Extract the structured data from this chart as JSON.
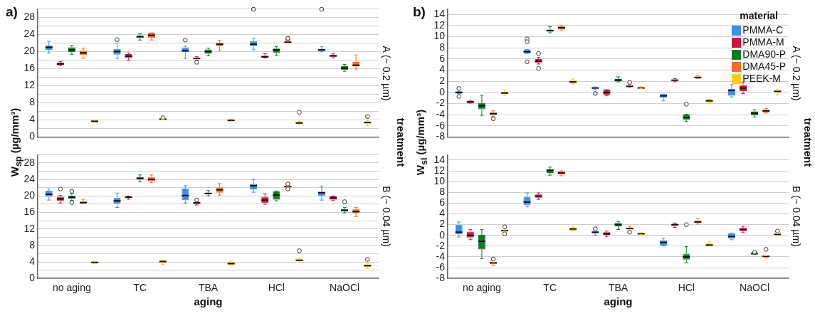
{
  "chart_data": [
    {
      "type": "box",
      "title": "a)",
      "ylabel": "W$_{sp}$  (µg/mm³)",
      "y2label": "A (~ 0.2 µm)",
      "annotations": [
        "treatment"
      ],
      "legend": false,
      "tick_labels": "y",
      "grid": "y",
      "categories": [
        null,
        null,
        null,
        null,
        null
      ],
      "ylim": [
        0,
        30
      ],
      "yticks": [
        0,
        {
          "value": 2,
          "label": null
        },
        4,
        {
          "value": 6,
          "label": null
        },
        8,
        {
          "value": 10,
          "label": null
        },
        12,
        {
          "value": 14,
          "label": null
        },
        16,
        {
          "value": 18,
          "label": null
        },
        20,
        {
          "value": 22,
          "label": null
        },
        24,
        {
          "value": 26,
          "label": null
        },
        28,
        {
          "value": 30,
          "label": null
        }
      ],
      "series": [
        {
          "color": "#3a8fe6",
          "boxes": [
            {
              "low": 19.7,
              "q1": 20.4,
              "median": 21,
              "q3": 21.4,
              "high": 22.4
            },
            {
              "low": 18.4,
              "q1": 19.3,
              "median": 20,
              "q3": 20.6,
              "high": 22,
              "outliers": [
                22.8
              ]
            },
            {
              "low": 18.4,
              "q1": 19.9,
              "median": 20.2,
              "q3": 21,
              "high": 21.3,
              "outliers": [
                22.7
              ]
            },
            {
              "low": 20.4,
              "q1": 21.3,
              "median": 21.7,
              "q3": 22.5,
              "high": 23.1,
              "outliers": [
                29.9
              ]
            },
            {
              "low": 20,
              "q1": 20.1,
              "median": 20.4,
              "q3": 20.6,
              "high": 21.2,
              "outliers": [
                29.9
              ]
            }
          ]
        },
        {
          "color": "#d2123c",
          "boxes": [
            {
              "low": 16.7,
              "q1": 16.9,
              "median": 17.1,
              "q3": 17.4,
              "high": 17.7
            },
            {
              "low": 18,
              "q1": 18.5,
              "median": 18.9,
              "q3": 19.4,
              "high": 19.7
            },
            {
              "low": 18,
              "q1": 18.2,
              "median": 18.4,
              "q3": 18.6,
              "high": 18.8,
              "outliers": [
                17.5
              ]
            },
            {
              "low": 18.5,
              "q1": 18.6,
              "median": 18.8,
              "q3": 19,
              "high": 19.5
            },
            {
              "low": 18.5,
              "q1": 18.8,
              "median": 19,
              "q3": 19.2,
              "high": 19.5
            }
          ]
        },
        {
          "color": "#0b7d1e",
          "boxes": [
            {
              "low": 19.3,
              "q1": 19.9,
              "median": 20.4,
              "q3": 21,
              "high": 21.4
            },
            {
              "low": 22.7,
              "q1": 23.2,
              "median": 23.5,
              "q3": 23.7,
              "high": 24.2
            },
            {
              "low": 19,
              "q1": 19.5,
              "median": 20,
              "q3": 20.5,
              "high": 20.8
            },
            {
              "low": 19.1,
              "q1": 19.7,
              "median": 20.4,
              "q3": 20.7,
              "high": 21.2
            },
            {
              "low": 15.4,
              "q1": 15.7,
              "median": 16.1,
              "q3": 16.6,
              "high": 17
            }
          ]
        },
        {
          "color": "#ff6b22",
          "boxes": [
            {
              "low": 18.4,
              "q1": 19.2,
              "median": 19.7,
              "q3": 20.2,
              "high": 20.8
            },
            {
              "low": 22.7,
              "q1": 23.2,
              "median": 23.8,
              "q3": 24.4,
              "high": 24.4
            },
            {
              "low": 20.2,
              "q1": 21.3,
              "median": 21.7,
              "q3": 22.1,
              "high": 22.6
            },
            {
              "low": 22,
              "q1": 22.1,
              "median": 22.2,
              "q3": 22.3,
              "high": 22.5,
              "outliers": [
                22.7,
                23.1
              ]
            },
            {
              "low": 15.9,
              "q1": 16.5,
              "median": 16.8,
              "q3": 17.6,
              "high": 19.2
            }
          ]
        },
        {
          "color": "#ffcc1a",
          "boxes": [
            {
              "low": 3.4,
              "q1": 3.5,
              "median": 3.7,
              "q3": 3.9,
              "high": 4
            },
            {
              "low": 4.1,
              "q1": 4.1,
              "median": 4.2,
              "q3": 4.3,
              "high": 4.3,
              "outliers": [
                4.5
              ]
            },
            {
              "low": 3.7,
              "q1": 3.8,
              "median": 3.9,
              "q3": 4.1,
              "high": 4.2
            },
            {
              "low": 2.9,
              "q1": 3.1,
              "median": 3.3,
              "q3": 3.5,
              "high": 3.7,
              "outliers": [
                5.8
              ]
            },
            {
              "low": 2.7,
              "q1": 3.2,
              "median": 3.4,
              "q3": 3.7,
              "high": 3.9,
              "outliers": [
                4.8
              ]
            }
          ]
        }
      ]
    },
    {
      "type": "box",
      "title": "b)",
      "ylabel": "W$_{sl}$  (µg/mm³)",
      "y2label": "A (~ 0.2 µm)",
      "annotations": [
        "treatment"
      ],
      "legend": "top right",
      "legend_title": "material",
      "tick_labels": "y",
      "grid": "y",
      "categories": [
        null,
        null,
        null,
        null,
        null
      ],
      "ylim": [
        -8,
        15
      ],
      "yticks": [
        -8,
        -6,
        -4,
        -2,
        0,
        2,
        4,
        6,
        8,
        10,
        12,
        14
      ],
      "series": [
        {
          "name": "PMMA-C",
          "color": "#3a8fe6",
          "boxes": [
            {
              "low": -0.2,
              "q1": -0.2,
              "median": 0,
              "q3": 0.2,
              "high": 0.2,
              "outliers": [
                0.7,
                -0.7
              ]
            },
            {
              "low": 7,
              "q1": 7,
              "median": 7.3,
              "q3": 7.7,
              "high": 7.7,
              "outliers": [
                9.6,
                9.1,
                5.5
              ]
            },
            {
              "low": 0.5,
              "q1": 0.7,
              "median": 0.8,
              "q3": 0.9,
              "high": 1,
              "outliers": [
                -0.2
              ]
            },
            {
              "low": -1.5,
              "q1": -0.9,
              "median": -0.6,
              "q3": -0.3,
              "high": -0.3
            },
            {
              "low": -0.8,
              "q1": -0.6,
              "median": 0.4,
              "q3": 0.6,
              "high": 1.4
            }
          ]
        },
        {
          "name": "PMMA-M",
          "color": "#d2123c",
          "boxes": [
            {
              "low": -1.9,
              "q1": -1.9,
              "median": -1.7,
              "q3": -1.5,
              "high": -1.4
            },
            {
              "low": 5.1,
              "q1": 5.3,
              "median": 5.6,
              "q3": 6,
              "high": 6.3,
              "outliers": [
                7,
                4.3
              ]
            },
            {
              "low": -0.6,
              "q1": -0.4,
              "median": 0,
              "q3": 0.5,
              "high": 0.5
            },
            {
              "low": 1.9,
              "q1": 2.1,
              "median": 2.2,
              "q3": 2.3,
              "high": 2.5
            },
            {
              "low": -0.2,
              "q1": 0.2,
              "median": 0.8,
              "q3": 1.3,
              "high": 1.8
            }
          ]
        },
        {
          "name": "DMA90-P",
          "color": "#0b7d1e",
          "boxes": [
            {
              "low": -4.1,
              "q1": -3,
              "median": -2.4,
              "q3": -1.9,
              "high": -0.5
            },
            {
              "low": 10.7,
              "q1": 10.9,
              "median": 11.1,
              "q3": 11.3,
              "high": 11.8
            },
            {
              "low": 1.9,
              "q1": 2,
              "median": 2.2,
              "q3": 2.4,
              "high": 2.8
            },
            {
              "low": -5.2,
              "q1": -4.9,
              "median": -4.5,
              "q3": -3.9,
              "high": -3.9,
              "outliers": [
                -2.1
              ]
            },
            {
              "low": -4.4,
              "q1": -4.1,
              "median": -3.7,
              "q3": -3.4,
              "high": -3.1
            }
          ]
        },
        {
          "name": "DMA45-P",
          "color": "#ff6b22",
          "boxes": [
            {
              "low": -4.3,
              "q1": -4,
              "median": -3.8,
              "q3": -3.6,
              "high": -3.3,
              "outliers": [
                -4.7
              ]
            },
            {
              "low": 11.2,
              "q1": 11.3,
              "median": 11.6,
              "q3": 11.9,
              "high": 12
            },
            {
              "low": 0.9,
              "q1": 1,
              "median": 1.1,
              "q3": 1.2,
              "high": 1.3,
              "outliers": [
                1.8
              ]
            },
            {
              "low": 2.5,
              "q1": 2.6,
              "median": 2.7,
              "q3": 2.8,
              "high": 3
            },
            {
              "low": -3.7,
              "q1": -3.6,
              "median": -3.3,
              "q3": -3.1,
              "high": -2.9
            }
          ]
        },
        {
          "name": "PEEK-M",
          "color": "#ffcc1a",
          "boxes": [
            {
              "low": -0.5,
              "q1": -0.3,
              "median": -0.1,
              "q3": 0.1,
              "high": 0.4
            },
            {
              "low": 1.5,
              "q1": 1.6,
              "median": 1.9,
              "q3": 2.2,
              "high": 2.4
            },
            {
              "low": 0.7,
              "q1": 0.8,
              "median": 0.8,
              "q3": 0.9,
              "high": 1.1
            },
            {
              "low": -2,
              "q1": -1.8,
              "median": -1.5,
              "q3": -1.3,
              "high": -1.2
            },
            {
              "low": -0.4,
              "q1": 0,
              "median": 0.2,
              "q3": 0.3,
              "high": 0.6
            }
          ]
        }
      ]
    },
    {
      "type": "box",
      "xlabel": "aging",
      "y2label": "B (~ 0.04 µm)",
      "legend": false,
      "grid": "y",
      "categories": [
        "no aging",
        "TC",
        "TBA",
        "HCl",
        "NaOCl"
      ],
      "ylim": [
        0,
        30
      ],
      "yticks": [
        0,
        {
          "value": 2,
          "label": null
        },
        4,
        {
          "value": 6,
          "label": null
        },
        8,
        {
          "value": 10,
          "label": null
        },
        12,
        {
          "value": 14,
          "label": null
        },
        16,
        {
          "value": 18,
          "label": null
        },
        20,
        {
          "value": 22,
          "label": null
        },
        24,
        {
          "value": 26,
          "label": null
        },
        28,
        {
          "value": 30,
          "label": null
        }
      ],
      "series": [
        {
          "color": "#3a8fe6",
          "boxes": [
            {
              "low": 19,
              "q1": 19.8,
              "median": 20.4,
              "q3": 21.3,
              "high": 21.7
            },
            {
              "low": 17.2,
              "q1": 18.1,
              "median": 18.8,
              "q3": 19.6,
              "high": 20.7
            },
            {
              "low": 18.3,
              "q1": 19,
              "median": 20.1,
              "q3": 21.8,
              "high": 22.5
            },
            {
              "low": 20.9,
              "q1": 21.6,
              "median": 22.5,
              "q3": 22.9,
              "high": 24
            },
            {
              "low": 19,
              "q1": 20,
              "median": 20.8,
              "q3": 21,
              "high": 22.4
            }
          ]
        },
        {
          "color": "#d2123c",
          "boxes": [
            {
              "low": 18.3,
              "q1": 18.8,
              "median": 19.3,
              "q3": 19.8,
              "high": 20.1,
              "outliers": [
                21.7
              ]
            },
            {
              "low": 19.2,
              "q1": 19.5,
              "median": 19.7,
              "q3": 19.9,
              "high": 20
            },
            {
              "low": 17.8,
              "q1": 18.1,
              "median": 18.3,
              "q3": 18.5,
              "high": 18.6,
              "outliers": [
                19
              ]
            },
            {
              "low": 18,
              "q1": 18.3,
              "median": 19,
              "q3": 19.8,
              "high": 20.5
            },
            {
              "low": 18.9,
              "q1": 19.1,
              "median": 19.5,
              "q3": 19.9,
              "high": 20
            }
          ]
        },
        {
          "color": "#0b7d1e",
          "boxes": [
            {
              "low": 18.9,
              "q1": 19.3,
              "median": 19.7,
              "q3": 20,
              "high": 20.7,
              "outliers": [
                21.1,
                18.4
              ]
            },
            {
              "low": 23.4,
              "q1": 24,
              "median": 24.3,
              "q3": 24.5,
              "high": 25.1
            },
            {
              "low": 20,
              "q1": 20.4,
              "median": 20.6,
              "q3": 20.8,
              "high": 21.3
            },
            {
              "low": 18.8,
              "q1": 19.1,
              "median": 20.2,
              "q3": 21.2,
              "high": 21.2
            },
            {
              "low": 15.9,
              "q1": 16.3,
              "median": 16.5,
              "q3": 16.8,
              "high": 17.2,
              "outliers": [
                18.6
              ]
            }
          ]
        },
        {
          "color": "#ff6b22",
          "boxes": [
            {
              "low": 18.1,
              "q1": 18.2,
              "median": 18.4,
              "q3": 18.6,
              "high": 19.2
            },
            {
              "low": 23.2,
              "q1": 23.6,
              "median": 24,
              "q3": 24.6,
              "high": 25.1
            },
            {
              "low": 20.2,
              "q1": 20.8,
              "median": 21.5,
              "q3": 22.1,
              "high": 23
            },
            {
              "low": 22.2,
              "q1": 22.2,
              "median": 22.3,
              "q3": 22.5,
              "high": 22.5,
              "outliers": [
                22.9,
                21.7
              ]
            },
            {
              "low": 15,
              "q1": 15.8,
              "median": 16.2,
              "q3": 16.8,
              "high": 17.2
            }
          ]
        },
        {
          "color": "#ffcc1a",
          "boxes": [
            {
              "low": 3.6,
              "q1": 3.8,
              "median": 3.9,
              "q3": 4,
              "high": 4.2
            },
            {
              "low": 3.4,
              "q1": 3.8,
              "median": 4.1,
              "q3": 4.4,
              "high": 4.5
            },
            {
              "low": 3,
              "q1": 3.3,
              "median": 3.6,
              "q3": 3.9,
              "high": 4.2
            },
            {
              "low": 3.9,
              "q1": 4.2,
              "median": 4.4,
              "q3": 4.6,
              "high": 4.8,
              "outliers": [
                6.7
              ]
            },
            {
              "low": 2.4,
              "q1": 2.8,
              "median": 3.1,
              "q3": 3.4,
              "high": 3.8,
              "outliers": [
                4.6
              ]
            }
          ]
        }
      ]
    },
    {
      "type": "box",
      "xlabel": "aging",
      "y2label": "B (~ 0.04 µm)",
      "legend": false,
      "grid": "y",
      "categories": [
        "no aging",
        "TC",
        "TBA",
        "HCl",
        "NaOCl"
      ],
      "ylim": [
        -8,
        15
      ],
      "yticks": [
        -8,
        -6,
        -4,
        -2,
        0,
        2,
        4,
        6,
        8,
        10,
        12,
        14
      ],
      "series": [
        {
          "color": "#3a8fe6",
          "boxes": [
            {
              "low": -0.3,
              "q1": 0.2,
              "median": 0.6,
              "q3": 2,
              "high": 2.5
            },
            {
              "low": 5.3,
              "q1": 5.6,
              "median": 6.2,
              "q3": 7.2,
              "high": 7.9
            },
            {
              "low": 0,
              "q1": 0.4,
              "median": 0.6,
              "q3": 0.7,
              "high": 0.9,
              "outliers": [
                1.2
              ]
            },
            {
              "low": -1.9,
              "q1": -1.9,
              "median": -1.3,
              "q3": -0.9,
              "high": -0.5
            },
            {
              "low": -0.8,
              "q1": -0.6,
              "median": -0.2,
              "q3": 0.4,
              "high": 0.4
            }
          ]
        },
        {
          "color": "#d2123c",
          "boxes": [
            {
              "low": -0.8,
              "q1": -0.4,
              "median": 0,
              "q3": 0.7,
              "high": 1.1
            },
            {
              "low": 6.7,
              "q1": 7,
              "median": 7.3,
              "q3": 7.6,
              "high": 7.9
            },
            {
              "low": -0.2,
              "q1": 0.1,
              "median": 0.3,
              "q3": 0.6,
              "high": 0.8
            },
            {
              "low": 1.5,
              "q1": 1.8,
              "median": 2,
              "q3": 2.1,
              "high": 2.3
            },
            {
              "low": 0.5,
              "q1": 0.8,
              "median": 1.1,
              "q3": 1.4,
              "high": 1.7
            }
          ]
        },
        {
          "color": "#0b7d1e",
          "boxes": [
            {
              "low": -4.3,
              "q1": -2.6,
              "median": -1.1,
              "q3": 0.1,
              "high": 1.1
            },
            {
              "low": 11.2,
              "q1": 11.6,
              "median": 12.1,
              "q3": 12.3,
              "high": 12.7
            },
            {
              "low": 1.1,
              "q1": 1.7,
              "median": 2,
              "q3": 2.3,
              "high": 2.6
            },
            {
              "low": -5.1,
              "q1": -4.5,
              "median": -4,
              "q3": -3.4,
              "high": -2.1,
              "outliers": [
                2
              ]
            },
            {
              "low": -3.5,
              "q1": -3.5,
              "median": -3.4,
              "q3": -3.3,
              "high": -3.3,
              "outliers": [
                -3.2
              ]
            }
          ]
        },
        {
          "color": "#ff6b22",
          "boxes": [
            {
              "low": -5.6,
              "q1": -5.3,
              "median": -5.1,
              "q3": -5,
              "high": -5,
              "outliers": [
                -4.4
              ]
            },
            {
              "low": 11.1,
              "q1": 11.3,
              "median": 11.6,
              "q3": 11.9,
              "high": 12
            },
            {
              "low": 0.9,
              "q1": 1.1,
              "median": 1.3,
              "q3": 1.4,
              "high": 1.7,
              "outliers": [
                0.6
              ]
            },
            {
              "low": 2.1,
              "q1": 2.3,
              "median": 2.5,
              "q3": 2.7,
              "high": 3.1
            },
            {
              "low": -4.2,
              "q1": -4,
              "median": -3.9,
              "q3": -3.8,
              "high": -3.8,
              "outliers": [
                -2.6
              ]
            }
          ]
        },
        {
          "color": "#ffcc1a",
          "boxes": [
            {
              "low": 0.7,
              "q1": 0.7,
              "median": 0.9,
              "q3": 1,
              "high": 1,
              "outliers": [
                1.6,
                0.3
              ]
            },
            {
              "low": 0.8,
              "q1": 0.8,
              "median": 1.2,
              "q3": 1.4,
              "high": 1.6
            },
            {
              "low": 0.1,
              "q1": 0.1,
              "median": 0.3,
              "q3": 0.4,
              "high": 0.5
            },
            {
              "low": -2,
              "q1": -2,
              "median": -1.8,
              "q3": -1.5,
              "high": -1.2
            },
            {
              "low": -0.1,
              "q1": 0.1,
              "median": 0.2,
              "q3": 0.3,
              "high": 0.3,
              "outliers": [
                0.8
              ]
            }
          ]
        }
      ]
    }
  ]
}
